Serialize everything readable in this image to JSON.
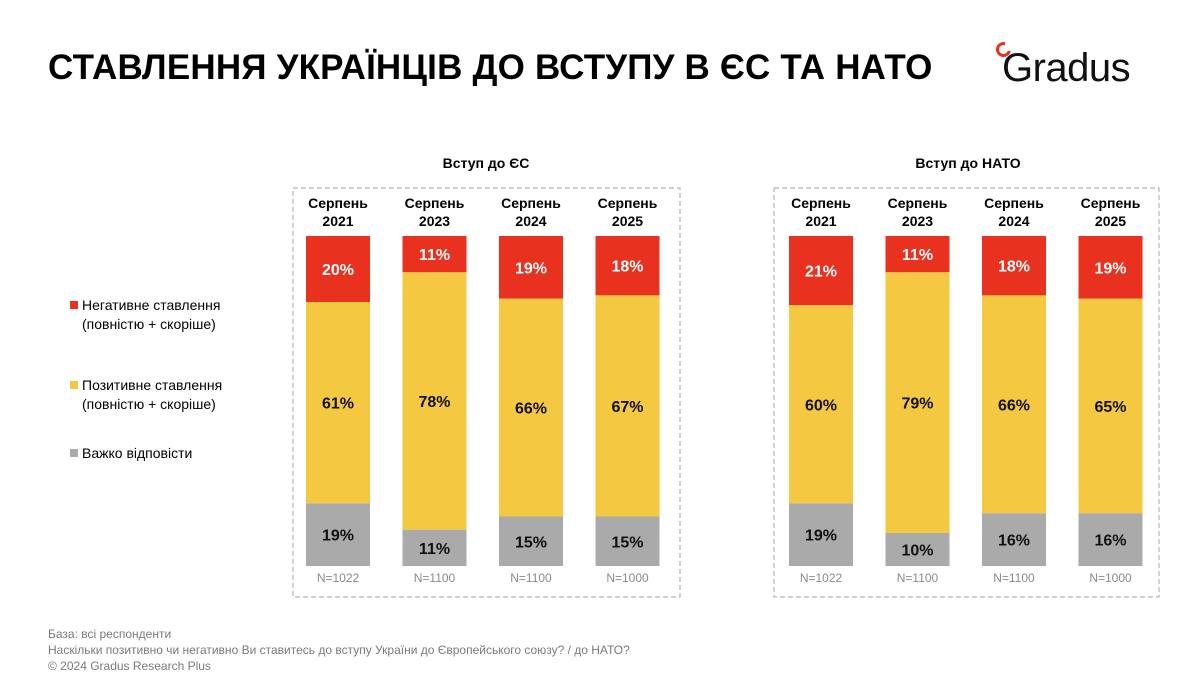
{
  "title": "СТАВЛЕННЯ УКРАЇНЦІВ ДО ВСТУПУ В ЄС ТА НАТО",
  "logo": {
    "text": "Gradus",
    "accent": "#e8321f"
  },
  "legend": {
    "negative": "Негативне ставлення (повністю + скоріше)",
    "positive": "Позитивне ставлення (повністю + скоріше)",
    "hard": "Важко відповісти"
  },
  "footer": {
    "base": "База: всі респонденти",
    "question": "Наскільки позитивно чи негативно Ви ставитесь до вступу України до Європейського союзу? / до НАТО?",
    "copyright": "© 2024 Gradus Research Plus"
  },
  "colors": {
    "negative": "#e8321f",
    "positive": "#f5c842",
    "hard": "#aaaaaa"
  },
  "chart_data": [
    {
      "type": "bar",
      "stacked": true,
      "title": "Вступ до ЄС",
      "categories": [
        "Серпень 2021",
        "Серпень 2023",
        "Серпень 2024",
        "Серпень 2025"
      ],
      "sample_sizes": [
        "N=1022",
        "N=1100",
        "N=1100",
        "N=1000"
      ],
      "series": [
        {
          "name": "Негативне ставлення (повністю + скоріше)",
          "values": [
            20,
            11,
            19,
            18
          ]
        },
        {
          "name": "Позитивне ставлення (повністю + скоріше)",
          "values": [
            61,
            78,
            66,
            67
          ]
        },
        {
          "name": "Важко відповісти",
          "values": [
            19,
            11,
            15,
            15
          ]
        }
      ],
      "unit": "%"
    },
    {
      "type": "bar",
      "stacked": true,
      "title": "Вступ до НАТО",
      "categories": [
        "Серпень 2021",
        "Серпень 2023",
        "Серпень 2024",
        "Серпень 2025"
      ],
      "sample_sizes": [
        "N=1022",
        "N=1100",
        "N=1100",
        "N=1000"
      ],
      "series": [
        {
          "name": "Негативне ставлення (повністю + скоріше)",
          "values": [
            21,
            11,
            18,
            19
          ]
        },
        {
          "name": "Позитивне ставлення (повністю + скоріше)",
          "values": [
            60,
            79,
            66,
            65
          ]
        },
        {
          "name": "Важко відповісти",
          "values": [
            19,
            10,
            16,
            16
          ]
        }
      ],
      "unit": "%"
    }
  ]
}
